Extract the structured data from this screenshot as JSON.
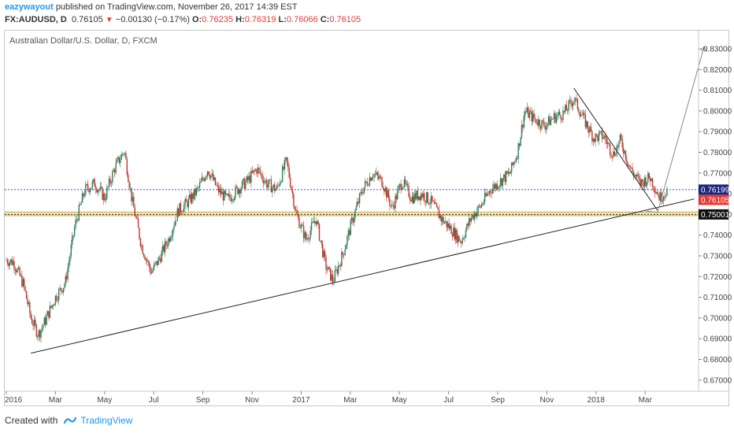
{
  "header": {
    "author": "eazywayout",
    "published": "published on TradingView.com, November 26, 2017 14:39 EST"
  },
  "ohlc": {
    "symbol": "FX:AUDUSD, D",
    "last": "0.76105",
    "change": "−0.00130 (−0.17%)",
    "o_label": "O:",
    "o": "0.76235",
    "h_label": "H:",
    "h": "0.76319",
    "l_label": "L:",
    "l": "0.76066",
    "c_label": "C:",
    "c": "0.76105"
  },
  "chart_title": "Australian Dollar/U.S. Dollar, D, FXCM",
  "footer": {
    "created_with": "Created with",
    "brand": "TradingView"
  },
  "colors": {
    "up": "#2e7d5b",
    "down": "#c0392b",
    "blue_line": "#3f51b5",
    "support_zone": "#f6e3a6",
    "current_tag": "#e53935",
    "blue_tag": "#1a237e",
    "black_tag": "#111111"
  },
  "chart_data": {
    "type": "candlestick",
    "title": "Australian Dollar/U.S. Dollar, D, FXCM",
    "y_ticks": [
      "0.83000",
      "0.82000",
      "0.81000",
      "0.80000",
      "0.79000",
      "0.78000",
      "0.77000",
      "0.76000",
      "0.75000",
      "0.74000",
      "0.73000",
      "0.72000",
      "0.71000",
      "0.70000",
      "0.69000",
      "0.68000",
      "0.67000"
    ],
    "x_ticks": [
      "2016",
      "Mar",
      "May",
      "Jul",
      "Sep",
      "Nov",
      "2017",
      "Mar",
      "May",
      "Jul",
      "Sep",
      "Nov",
      "2018",
      "Mar"
    ],
    "ylim": [
      0.664,
      0.838
    ],
    "price_tags": [
      {
        "label": "0.76199",
        "value": 0.76199
      },
      {
        "label": "0.76105",
        "value": 0.76105
      },
      {
        "label": "0.75001",
        "value": 0.75001
      }
    ],
    "blue_level": 0.76199,
    "support_zone": [
      0.7494,
      0.7512
    ],
    "support_line": 0.75001,
    "close_path": [
      [
        0,
        0.728
      ],
      [
        0.3,
        0.727
      ],
      [
        0.7,
        0.716
      ],
      [
        1.0,
        0.7
      ],
      [
        1.3,
        0.692
      ],
      [
        1.6,
        0.699
      ],
      [
        2.0,
        0.71
      ],
      [
        2.4,
        0.717
      ],
      [
        2.8,
        0.745
      ],
      [
        3.2,
        0.762
      ],
      [
        3.6,
        0.765
      ],
      [
        4.0,
        0.758
      ],
      [
        4.4,
        0.772
      ],
      [
        4.8,
        0.781
      ],
      [
        5.1,
        0.758
      ],
      [
        5.5,
        0.735
      ],
      [
        5.9,
        0.722
      ],
      [
        6.2,
        0.728
      ],
      [
        6.6,
        0.738
      ],
      [
        7.0,
        0.752
      ],
      [
        7.4,
        0.756
      ],
      [
        7.8,
        0.762
      ],
      [
        8.2,
        0.772
      ],
      [
        8.6,
        0.762
      ],
      [
        9.0,
        0.757
      ],
      [
        9.4,
        0.762
      ],
      [
        9.8,
        0.766
      ],
      [
        10.2,
        0.772
      ],
      [
        10.6,
        0.765
      ],
      [
        11.0,
        0.762
      ],
      [
        11.4,
        0.776
      ],
      [
        11.8,
        0.75
      ],
      [
        12.2,
        0.738
      ],
      [
        12.6,
        0.748
      ],
      [
        13.0,
        0.725
      ],
      [
        13.3,
        0.718
      ],
      [
        13.7,
        0.731
      ],
      [
        14.1,
        0.748
      ],
      [
        14.5,
        0.762
      ],
      [
        14.9,
        0.77
      ],
      [
        15.3,
        0.766
      ],
      [
        15.7,
        0.753
      ],
      [
        16.1,
        0.766
      ],
      [
        16.5,
        0.758
      ],
      [
        16.9,
        0.76
      ],
      [
        17.3,
        0.756
      ],
      [
        17.7,
        0.748
      ],
      [
        18.1,
        0.743
      ],
      [
        18.5,
        0.737
      ],
      [
        18.9,
        0.748
      ],
      [
        19.3,
        0.754
      ],
      [
        19.7,
        0.762
      ],
      [
        20.1,
        0.766
      ],
      [
        20.5,
        0.77
      ],
      [
        20.8,
        0.78
      ],
      [
        21.1,
        0.8
      ],
      [
        21.5,
        0.796
      ],
      [
        21.9,
        0.793
      ],
      [
        22.3,
        0.797
      ],
      [
        22.7,
        0.799
      ],
      [
        23.1,
        0.806
      ],
      [
        23.5,
        0.796
      ],
      [
        23.9,
        0.787
      ],
      [
        24.3,
        0.788
      ],
      [
        24.7,
        0.779
      ],
      [
        25.0,
        0.786
      ],
      [
        25.4,
        0.772
      ],
      [
        25.8,
        0.765
      ],
      [
        26.2,
        0.768
      ],
      [
        26.6,
        0.758
      ],
      [
        26.9,
        0.762
      ]
    ],
    "annotations": {
      "trendline_support": [
        [
          1.0,
          0.683
        ],
        [
          28.0,
          0.7575
        ]
      ],
      "trendline_resistance": [
        [
          23.1,
          0.811
        ],
        [
          26.5,
          0.752
        ]
      ],
      "projection_arrow": [
        [
          26.5,
          0.751
        ],
        [
          28.4,
          0.831
        ]
      ]
    }
  }
}
